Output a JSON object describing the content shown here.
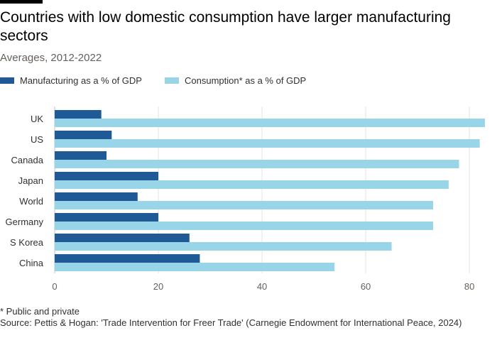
{
  "chart_data": {
    "type": "bar",
    "orientation": "horizontal",
    "title": "Countries with low domestic consumption have larger manufacturing sectors",
    "subtitle": "Averages, 2012-2022",
    "categories": [
      "UK",
      "US",
      "Canada",
      "Japan",
      "World",
      "Germany",
      "S Korea",
      "China"
    ],
    "series": [
      {
        "name": "Manufacturing as a % of GDP",
        "color": "#1f5a96",
        "values": [
          9,
          11,
          10,
          20,
          16,
          20,
          26,
          28
        ]
      },
      {
        "name": "Consumption* as a % of GDP",
        "color": "#98d5e9",
        "values": [
          83,
          82,
          78,
          76,
          73,
          73,
          65,
          54
        ]
      }
    ],
    "xlim": [
      0,
      83
    ],
    "xticks": [
      "0",
      "20",
      "40",
      "60",
      "80"
    ],
    "xlabel": "",
    "ylabel": "",
    "grid": true,
    "legend_position": "top-left"
  },
  "footnotes": {
    "note": "* Public and private",
    "source": "Source: Pettis & Hogan: 'Trade Intervention for Freer Trade' (Carnegie Endowment for International Peace, 2024)"
  }
}
